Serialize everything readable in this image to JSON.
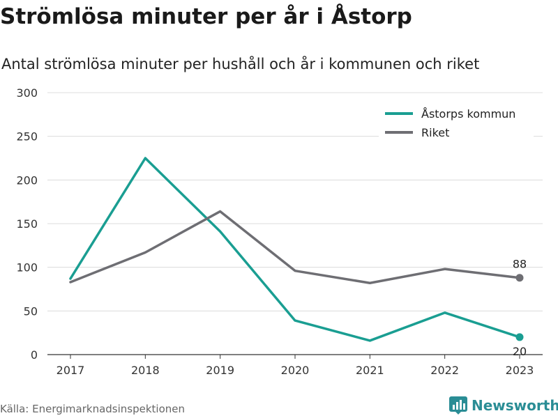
{
  "header": {
    "title": "Strömlösa minuter per år i Åstorp",
    "subtitle": "Antal strömlösa minuter per hushåll och år i kommunen och riket"
  },
  "footer": {
    "source": "Källa: Energimarknadsinspektionen",
    "brand": "Newsworthy",
    "brand_icon": "bar-chart-icon"
  },
  "colors": {
    "astorp": "#1a9e92",
    "riket": "#6e6e73",
    "grid": "#dcdcdc",
    "brand": "#2a8d95"
  },
  "chart_data": {
    "type": "line",
    "title": "Strömlösa minuter per år i Åstorp",
    "subtitle": "Antal strömlösa minuter per hushåll och år i kommunen och riket",
    "xlabel": "",
    "ylabel": "",
    "x": [
      "2017",
      "2018",
      "2019",
      "2020",
      "2021",
      "2022",
      "2023"
    ],
    "ylim": [
      0,
      300
    ],
    "yticks": [
      0,
      50,
      100,
      150,
      200,
      250,
      300
    ],
    "grid": true,
    "legend": "top-right",
    "series": [
      {
        "name": "Åstorps kommun",
        "color": "#1a9e92",
        "values": [
          87,
          225,
          141,
          39,
          16,
          48,
          20
        ],
        "end_label": "20"
      },
      {
        "name": "Riket",
        "color": "#6e6e73",
        "values": [
          83,
          117,
          164,
          96,
          82,
          98,
          88
        ],
        "end_label": "88"
      }
    ]
  }
}
